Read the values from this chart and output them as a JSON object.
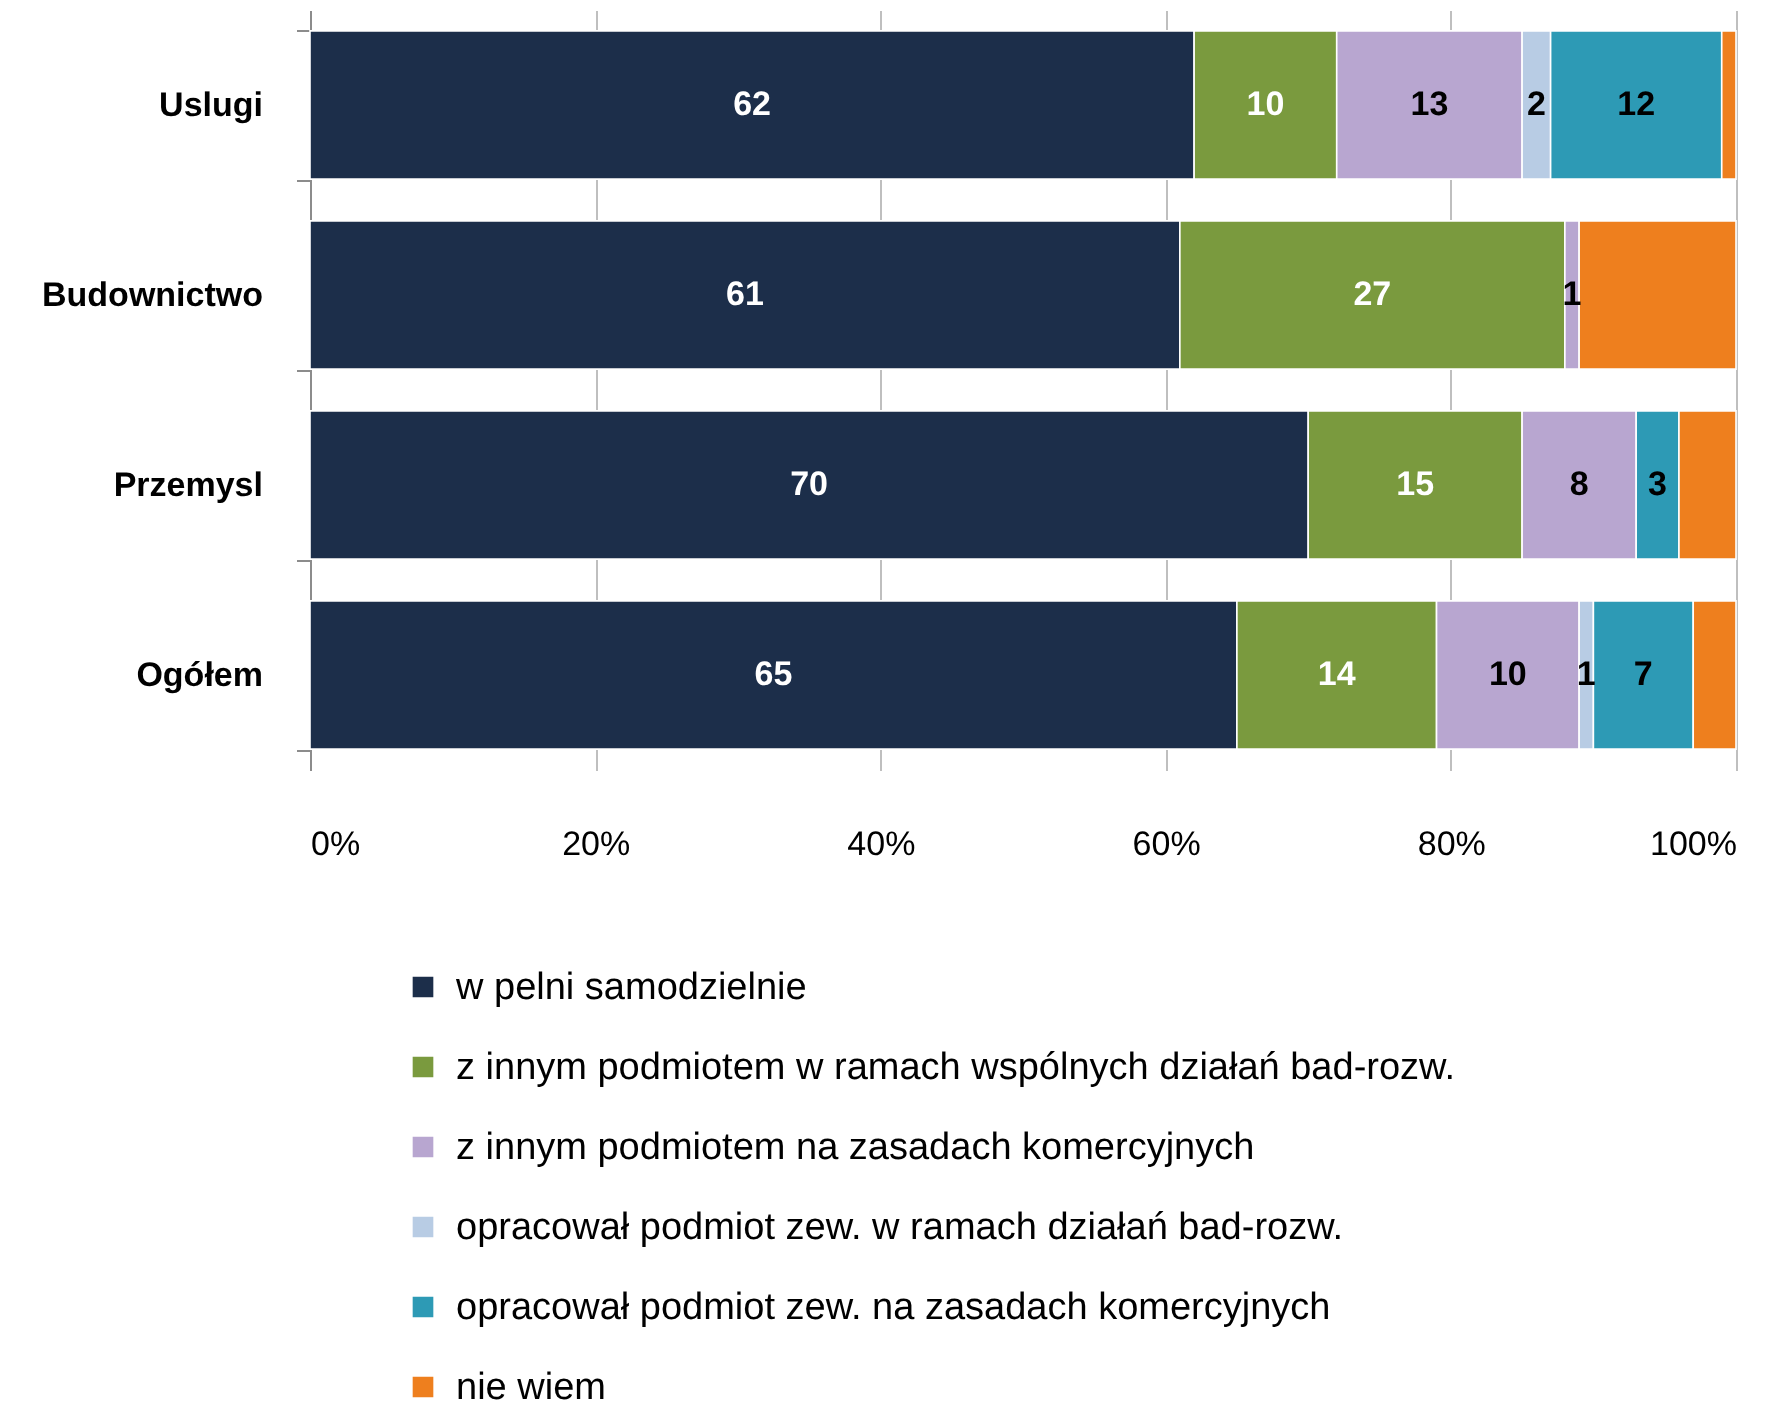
{
  "chart_data": {
    "type": "bar",
    "orientation": "horizontal",
    "stacked": true,
    "categories": [
      "Uslugi",
      "Budownictwo",
      "Przemysl",
      "Ogółem"
    ],
    "xlim": [
      0,
      100
    ],
    "xticks": [
      {
        "value": 0,
        "label": "0%"
      },
      {
        "value": 20,
        "label": "20%"
      },
      {
        "value": 40,
        "label": "40%"
      },
      {
        "value": 60,
        "label": "60%"
      },
      {
        "value": 80,
        "label": "80%"
      },
      {
        "value": 100,
        "label": "100%"
      }
    ],
    "grid": "x",
    "legend": "bottom",
    "series": [
      {
        "name": "w pelni samodzielnie",
        "color": "#1c2e4a",
        "values": [
          62,
          61,
          70,
          65
        ],
        "value_labels": [
          "62",
          "61",
          "70",
          "65"
        ]
      },
      {
        "name": "z innym podmiotem w ramach wspólnych działań bad-rozw.",
        "color": "#7a9a3e",
        "values": [
          10,
          27,
          15,
          14
        ],
        "value_labels": [
          "10",
          "27",
          "15",
          "14"
        ]
      },
      {
        "name": "z innym podmiotem na zasadach komercyjnych",
        "color": "#b8a6d0",
        "values": [
          13,
          1,
          8,
          10
        ],
        "value_labels": [
          "13",
          "1",
          "8",
          "10"
        ]
      },
      {
        "name": "opracował podmiot zew. w ramach działań bad-rozw.",
        "color": "#b8cce4",
        "values": [
          2,
          null,
          null,
          1
        ],
        "value_labels": [
          "2",
          null,
          null,
          "1"
        ]
      },
      {
        "name": "opracował podmiot zew. na zasadach komercyjnych",
        "color": "#2d9ab5",
        "values": [
          12,
          null,
          3,
          7
        ],
        "value_labels": [
          "12",
          null,
          "3",
          "7"
        ]
      },
      {
        "name": "nie wiem",
        "color": "#ee7f1e",
        "values": [
          1,
          11,
          4,
          3
        ]
      }
    ]
  }
}
